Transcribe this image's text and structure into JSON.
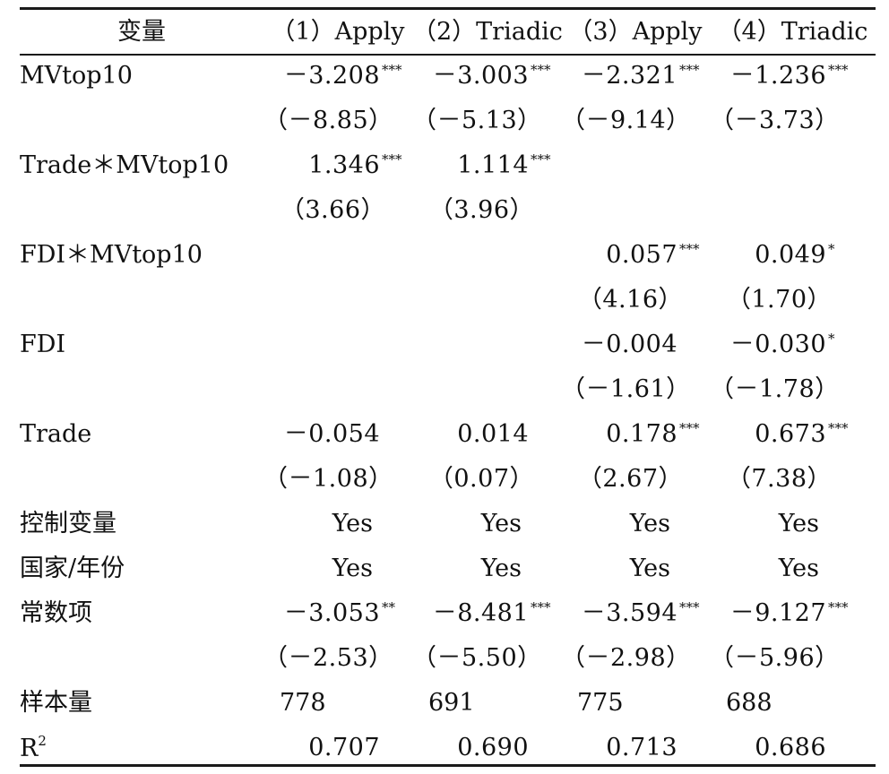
{
  "header": {
    "var_label": "变量",
    "columns": [
      "（1）Apply",
      "（2）Triadic",
      "（3）Apply",
      "（4）Triadic"
    ]
  },
  "rows": [
    {
      "label": "MVtop10",
      "coef": [
        "－3.208",
        "－3.003",
        "－2.321",
        "－1.236"
      ],
      "stars": [
        "***",
        "***",
        "***",
        "***"
      ],
      "t": [
        "（－8.85）",
        "（－5.13）",
        "（－9.14）",
        "（－3.73）"
      ]
    },
    {
      "label": "Trade＊MVtop10",
      "coef": [
        "1.346",
        "1.114",
        "",
        ""
      ],
      "stars": [
        "***",
        "***",
        "",
        ""
      ],
      "t": [
        "（3.66）",
        "（3.96）",
        "",
        ""
      ]
    },
    {
      "label": "FDI＊MVtop10",
      "coef": [
        "",
        "",
        "0.057",
        "0.049"
      ],
      "stars": [
        "",
        "",
        "***",
        "*"
      ],
      "t": [
        "",
        "",
        "（4.16）",
        "（1.70）"
      ]
    },
    {
      "label": "FDI",
      "coef": [
        "",
        "",
        "－0.004",
        "－0.030"
      ],
      "stars": [
        "",
        "",
        "",
        "*"
      ],
      "t": [
        "",
        "",
        "（－1.61）",
        "（－1.78）"
      ]
    },
    {
      "label": "Trade",
      "coef": [
        "－0.054",
        "0.014",
        "0.178",
        "0.673"
      ],
      "stars": [
        "",
        "",
        "***",
        "***"
      ],
      "t": [
        "（－1.08）",
        "（0.07）",
        "（2.67）",
        "（7.38）"
      ]
    }
  ],
  "controls": {
    "label": "控制变量",
    "values": [
      "Yes",
      "Yes",
      "Yes",
      "Yes"
    ]
  },
  "fixed_effects": {
    "label": "国家/年份",
    "values": [
      "Yes",
      "Yes",
      "Yes",
      "Yes"
    ]
  },
  "constant": {
    "label": "常数项",
    "coef": [
      "－3.053",
      "－8.481",
      "－3.594",
      "－9.127"
    ],
    "stars": [
      "**",
      "***",
      "***",
      "***"
    ],
    "t": [
      "（－2.53）",
      "（－5.50）",
      "（－2.98）",
      "（－5.96）"
    ]
  },
  "n_obs": {
    "label": "样本量",
    "values": [
      "778",
      "691",
      "775",
      "688"
    ]
  },
  "r2": {
    "label": "R",
    "label_sup": "2",
    "values": [
      "0.707",
      "0.690",
      "0.713",
      "0.686"
    ]
  }
}
